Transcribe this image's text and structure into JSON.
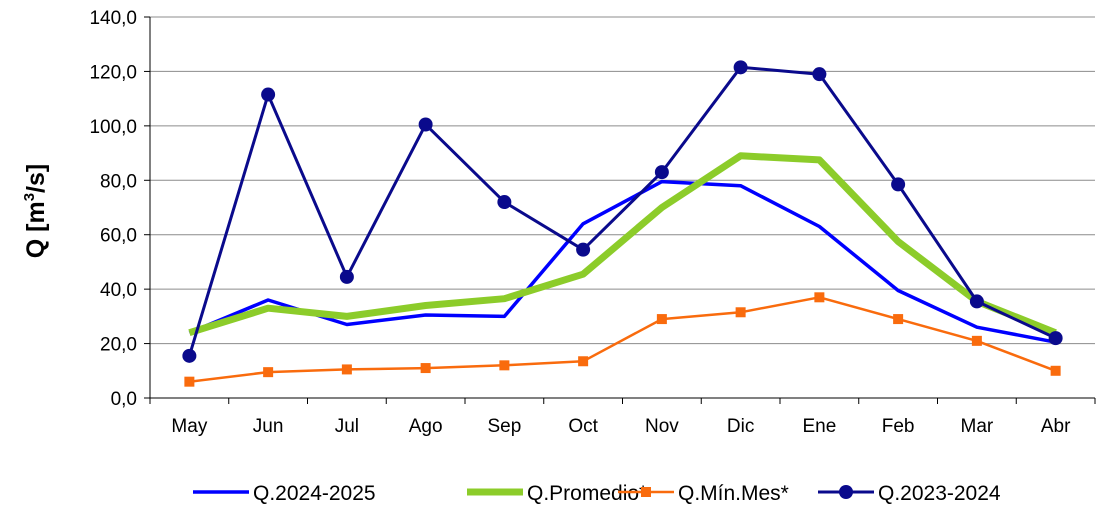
{
  "chart_data": {
    "type": "line",
    "ylabel": "Q [m³/s]",
    "ylim": [
      0,
      140
    ],
    "yticks": [
      0,
      20,
      40,
      60,
      80,
      100,
      120,
      140
    ],
    "ytick_labels": [
      "0,0",
      "20,0",
      "40,0",
      "60,0",
      "80,0",
      "100,0",
      "120,0",
      "140,0"
    ],
    "categories": [
      "May",
      "Jun",
      "Jul",
      "Ago",
      "Sep",
      "Oct",
      "Nov",
      "Dic",
      "Ene",
      "Feb",
      "Mar",
      "Abr"
    ],
    "grid": true,
    "legend_position": "bottom",
    "series": [
      {
        "name": "Q.2024-2025",
        "color": "#0000ff",
        "marker": "none",
        "values": [
          24.0,
          36.0,
          27.0,
          30.5,
          30.0,
          64.0,
          79.5,
          78.0,
          63.0,
          39.5,
          26.0,
          20.5
        ]
      },
      {
        "name": "Q.Promedio*",
        "color": "#8ccc2a",
        "marker": "none",
        "values": [
          24.0,
          33.0,
          30.0,
          34.0,
          36.5,
          45.5,
          70.0,
          89.0,
          87.5,
          57.5,
          35.5,
          24.0
        ]
      },
      {
        "name": "Q.Mín.Mes*",
        "color": "#f96b0d",
        "marker": "square",
        "values": [
          6.0,
          9.5,
          10.5,
          11.0,
          12.0,
          13.5,
          29.0,
          31.5,
          37.0,
          29.0,
          21.0,
          10.0
        ]
      },
      {
        "name": "Q.2023-2024",
        "color": "#0a0a8c",
        "marker": "circle",
        "values": [
          15.5,
          111.5,
          44.5,
          100.5,
          72.0,
          54.5,
          83.0,
          121.5,
          119.0,
          78.5,
          35.5,
          22.0
        ]
      }
    ]
  }
}
